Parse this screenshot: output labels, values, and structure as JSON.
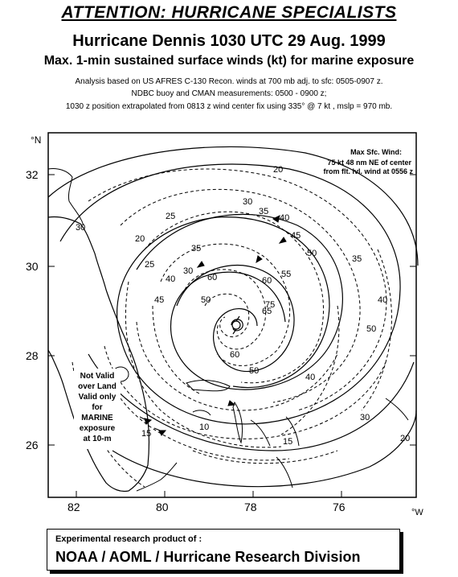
{
  "header": {
    "attention": "ATTENTION: HURRICANE SPECIALISTS",
    "title": "Hurricane Dennis 1030 UTC 29 Aug. 1999",
    "subtitle": "Max. 1-min sustained surface winds (kt) for marine exposure",
    "note1": "Analysis based on US AFRES C-130 Recon. winds at 700 mb adj. to sfc: 0505-0907 z.",
    "note2": "NDBC buoy and CMAN measurements: 0500 - 0900 z;",
    "note3": "1030 z  position extrapolated from 0813 z wind center fix  using 335° @ 7 kt , mslp = 970 mb."
  },
  "map": {
    "lat_ticks": [
      "32",
      "30",
      "28",
      "26"
    ],
    "lon_ticks": [
      "82",
      "80",
      "78",
      "76"
    ],
    "north_unit": "°N",
    "west_unit": "°W",
    "max_wind_box": [
      "Max Sfc. Wind:",
      "75 kt  48 nm NE of center",
      "from flt. lvl. wind at 0556 z"
    ],
    "land_note": [
      "Not Valid",
      "over Land",
      "Valid only",
      "for",
      "MARINE",
      "exposure",
      "at 10-m"
    ],
    "contour_labels": [
      "20",
      "25",
      "30",
      "35",
      "40",
      "45",
      "50",
      "55",
      "60",
      "65",
      "75",
      "60",
      "50",
      "40",
      "30",
      "20",
      "15",
      "10",
      "15",
      "20",
      "25",
      "30",
      "35",
      "40",
      "45",
      "50",
      "60",
      "30",
      "35",
      "40",
      "50"
    ]
  },
  "footer": {
    "line1": "Experimental research product of :",
    "line2": "NOAA / AOML / Hurricane Research Division"
  }
}
